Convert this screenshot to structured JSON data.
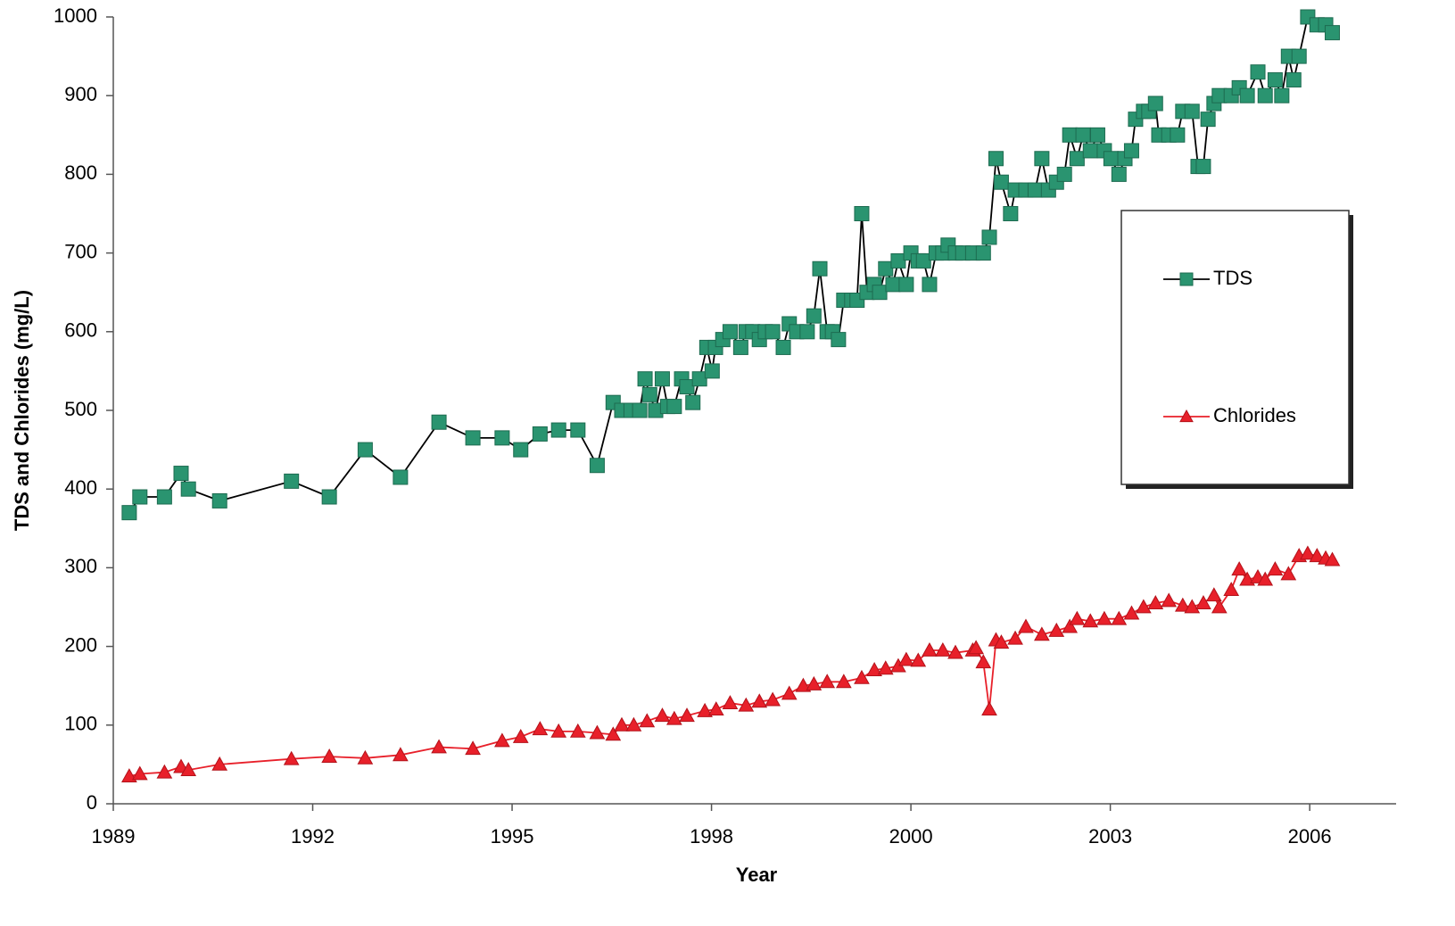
{
  "chart_data": {
    "type": "line",
    "xlabel": "Year",
    "ylabel": "TDS and Chlorides (mg/L)",
    "xlim": [
      1989,
      2008.3
    ],
    "ylim": [
      0,
      1000
    ],
    "xticks": [
      1989,
      1992,
      1995,
      1998,
      {
        "value": 2001,
        "label": "2000"
      },
      {
        "value": 2004,
        "label": "2003"
      },
      {
        "value": 2007,
        "label": "2006"
      }
    ],
    "yticks": [
      0,
      100,
      200,
      300,
      400,
      500,
      600,
      700,
      800,
      900,
      1000
    ],
    "grid": false,
    "legend": "right",
    "series": [
      {
        "name": "TDS",
        "color": "#2a9470",
        "line_color": "#000000",
        "marker": "square",
        "x": [
          1989.24,
          1989.4,
          1989.77,
          1990.02,
          1990.13,
          1990.6,
          1991.68,
          1992.25,
          1992.79,
          1993.32,
          1993.9,
          1994.41,
          1994.85,
          1995.13,
          1995.42,
          1995.7,
          1995.99,
          1996.28,
          1996.52,
          1996.65,
          1996.79,
          1996.92,
          1997.0,
          1997.07,
          1997.16,
          1997.26,
          1997.34,
          1997.44,
          1997.55,
          1997.63,
          1997.72,
          1997.82,
          1997.93,
          1998.01,
          1998.06,
          1998.17,
          1998.28,
          1998.44,
          1998.52,
          1998.62,
          1998.72,
          1998.81,
          1998.92,
          1999.08,
          1999.17,
          1999.28,
          1999.44,
          1999.54,
          1999.63,
          1999.74,
          1999.82,
          1999.91,
          1999.99,
          2000.11,
          2000.19,
          2000.26,
          2000.34,
          2000.45,
          2000.53,
          2000.62,
          2000.73,
          2000.81,
          2000.93,
          2001.0,
          2001.11,
          2001.19,
          2001.28,
          2001.38,
          2001.48,
          2001.56,
          2001.67,
          2001.78,
          2001.93,
          2002.09,
          2002.18,
          2002.28,
          2002.36,
          2002.5,
          2002.57,
          2002.73,
          2002.87,
          2002.97,
          2003.07,
          2003.19,
          2003.31,
          2003.39,
          2003.5,
          2003.59,
          2003.7,
          2003.81,
          2003.91,
          2004.01,
          2004.13,
          2004.22,
          2004.32,
          2004.38,
          2004.5,
          2004.58,
          2004.68,
          2004.73,
          2004.88,
          2005.01,
          2005.09,
          2005.23,
          2005.32,
          2005.4,
          2005.47,
          2005.56,
          2005.64,
          2005.82,
          2005.94,
          2006.06,
          2006.22,
          2006.33,
          2006.48,
          2006.58,
          2006.68,
          2006.76,
          2006.84,
          2006.97,
          2007.11,
          2007.24,
          2007.34
        ],
        "values": [
          370,
          390,
          390,
          420,
          400,
          385,
          410,
          390,
          450,
          415,
          485,
          465,
          465,
          450,
          470,
          475,
          475,
          430,
          510,
          500,
          500,
          500,
          540,
          520,
          500,
          540,
          505,
          505,
          540,
          530,
          510,
          540,
          580,
          550,
          580,
          590,
          600,
          580,
          600,
          600,
          590,
          600,
          600,
          580,
          610,
          600,
          600,
          620,
          680,
          600,
          600,
          590,
          640,
          640,
          640,
          750,
          650,
          660,
          650,
          680,
          660,
          690,
          660,
          700,
          690,
          690,
          660,
          700,
          700,
          710,
          700,
          700,
          700,
          700,
          720,
          820,
          790,
          750,
          780,
          780,
          780,
          820,
          780,
          790,
          800,
          850,
          820,
          850,
          830,
          850,
          830,
          820,
          800,
          820,
          830,
          870,
          880,
          880,
          890,
          850,
          850,
          850,
          880,
          880,
          810,
          810,
          870,
          890,
          900,
          900,
          910,
          900,
          930,
          900,
          920,
          900,
          950,
          920,
          950,
          1000,
          990,
          990,
          980
        ]
      },
      {
        "name": "Chlorides",
        "color": "#e8202a",
        "line_color": "#e8202a",
        "marker": "triangle",
        "x": [
          1989.24,
          1989.4,
          1989.77,
          1990.02,
          1990.13,
          1990.6,
          1991.68,
          1992.25,
          1992.79,
          1993.32,
          1993.9,
          1994.41,
          1994.85,
          1995.13,
          1995.42,
          1995.7,
          1995.99,
          1996.28,
          1996.52,
          1996.65,
          1996.83,
          1997.03,
          1997.26,
          1997.44,
          1997.63,
          1997.9,
          1998.07,
          1998.28,
          1998.52,
          1998.72,
          1998.92,
          1999.17,
          1999.38,
          1999.54,
          1999.74,
          1999.99,
          2000.26,
          2000.45,
          2000.62,
          2000.81,
          2000.93,
          2001.11,
          2001.28,
          2001.48,
          2001.67,
          2001.93,
          2001.98,
          2002.09,
          2002.18,
          2002.28,
          2002.36,
          2002.57,
          2002.73,
          2002.97,
          2003.19,
          2003.39,
          2003.5,
          2003.7,
          2003.91,
          2004.13,
          2004.32,
          2004.5,
          2004.68,
          2004.88,
          2005.09,
          2005.23,
          2005.4,
          2005.56,
          2005.64,
          2005.82,
          2005.94,
          2006.06,
          2006.22,
          2006.33,
          2006.48,
          2006.68,
          2006.84,
          2006.97,
          2007.11,
          2007.24,
          2007.34
        ],
        "values": [
          35,
          38,
          40,
          47,
          43,
          50,
          57,
          60,
          58,
          62,
          72,
          70,
          80,
          85,
          95,
          92,
          92,
          90,
          88,
          100,
          100,
          105,
          112,
          108,
          112,
          118,
          120,
          128,
          125,
          130,
          132,
          140,
          150,
          152,
          155,
          155,
          160,
          170,
          172,
          175,
          183,
          182,
          195,
          195,
          192,
          195,
          198,
          180,
          120,
          208,
          205,
          210,
          225,
          215,
          220,
          225,
          235,
          232,
          235,
          235,
          242,
          250,
          255,
          258,
          252,
          250,
          255,
          265,
          250,
          272,
          298,
          285,
          288,
          285,
          298,
          292,
          315,
          318,
          315,
          312,
          310
        ]
      }
    ]
  }
}
